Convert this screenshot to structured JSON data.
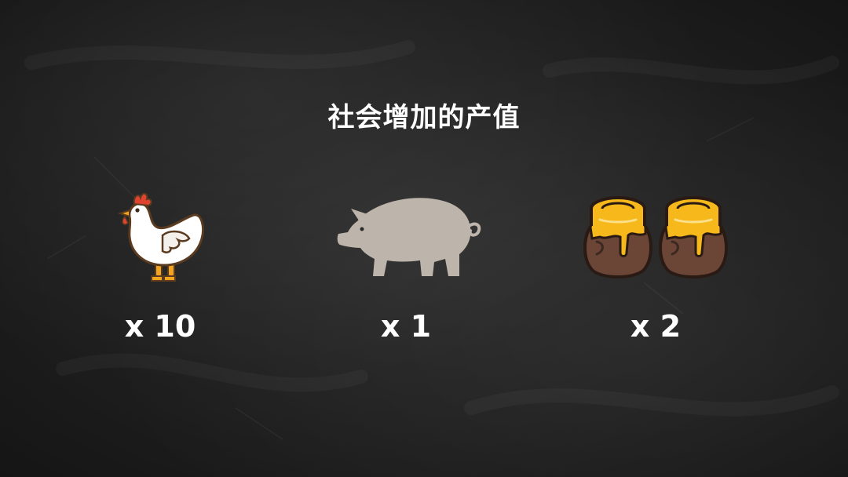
{
  "title": "社会增加的产值",
  "items": [
    {
      "icon": "chicken-icon",
      "quantity": "x 10"
    },
    {
      "icon": "pig-icon",
      "quantity": "x 1"
    },
    {
      "icon": "honey-pot-icon",
      "quantity": "x 2"
    }
  ],
  "colors": {
    "background": "#1f1f1f",
    "text": "#ffffff",
    "pig": "#bdb5ab",
    "honey": "#f6b81a",
    "pot": "#6b4637"
  }
}
